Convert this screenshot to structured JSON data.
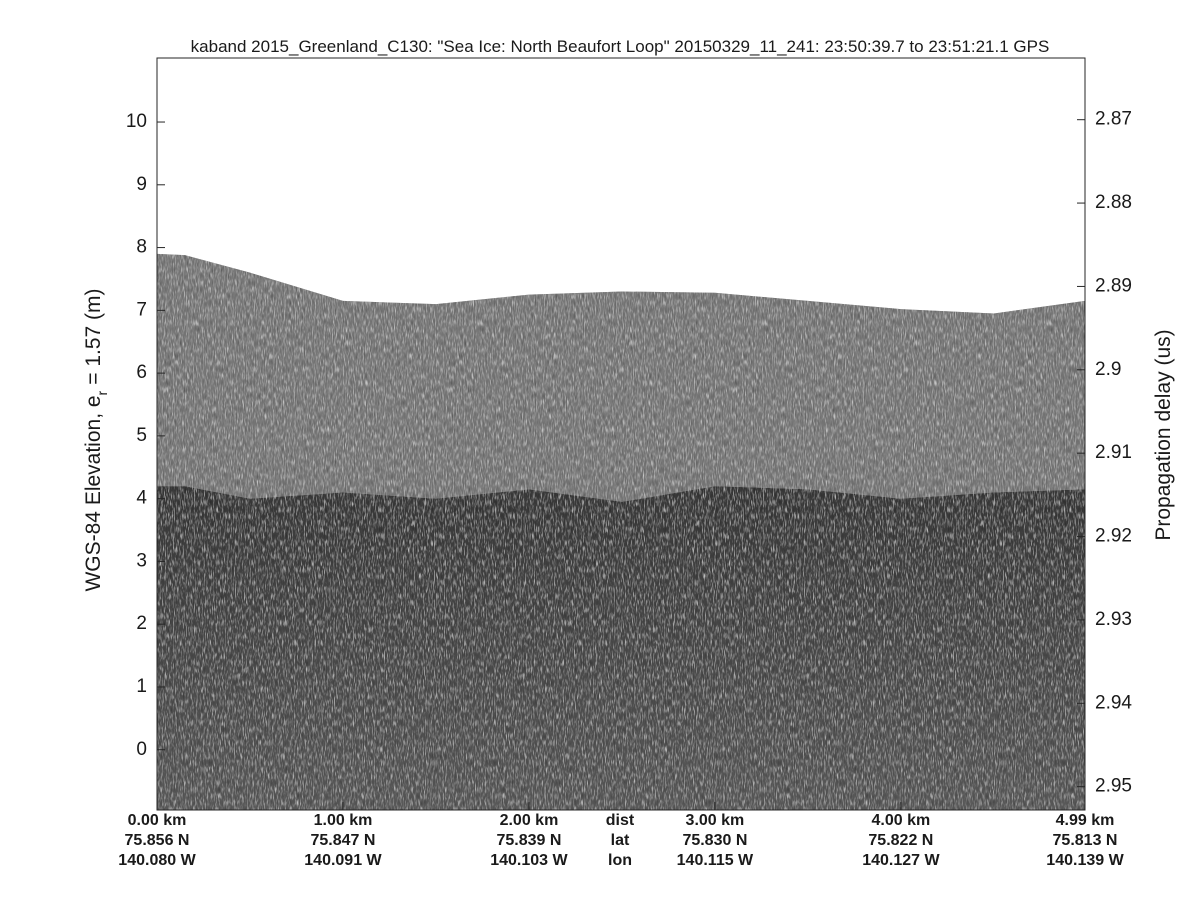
{
  "chart_data": {
    "type": "echogram",
    "title": "kaband 2015_Greenland_C130: \"Sea Ice: North Beaufort Loop\"  20150329_11_241: 23:50:39.7 to 23:51:21.1 GPS",
    "ylabel": {
      "main": "WGS-84 Elevation, e",
      "sub": "r",
      "rest": "= 1.57 (m)"
    },
    "y2label": "Propagation delay (us)",
    "x": [
      0,
      0.15,
      0.5,
      1.0,
      1.5,
      2.0,
      2.5,
      3.0,
      3.5,
      4.0,
      4.5,
      4.99
    ],
    "series": [
      {
        "color": "#7b7b7b",
        "values": [
          7.9,
          7.88,
          7.6,
          7.15,
          7.1,
          7.25,
          7.3,
          7.28,
          7.15,
          7.02,
          6.95,
          7.15
        ]
      },
      {
        "color": "#3a3a3a",
        "values": [
          4.2,
          4.2,
          4.0,
          4.1,
          4.0,
          4.15,
          3.95,
          4.2,
          4.15,
          4.0,
          4.1,
          4.15
        ]
      }
    ],
    "xlim": [
      0,
      4.99
    ],
    "xticks": [
      {
        "value": 0,
        "label": "0.00 km"
      },
      {
        "value": 1,
        "label": "1.00 km"
      },
      {
        "value": 2,
        "label": "2.00 km"
      },
      {
        "value": 3,
        "label": "3.00 km"
      },
      {
        "value": 4,
        "label": "4.00 km"
      },
      {
        "value": 4.99,
        "label": "4.99 km"
      }
    ],
    "xtick_lat": [
      "75.856 N",
      "75.847 N",
      "75.839 N",
      "75.830 N",
      "75.822 N",
      "75.813 N"
    ],
    "xtick_lon": [
      "140.080 W",
      "140.091 W",
      "140.103 W",
      "140.115 W",
      "140.127 W",
      "140.139 W"
    ],
    "xrow_labels": [
      "dist",
      "lat",
      "lon"
    ],
    "ylim": [
      -0.96,
      11.02
    ],
    "yticks": [
      0,
      1,
      2,
      3,
      4,
      5,
      6,
      7,
      8,
      9,
      10
    ],
    "y2lim": [
      2.9528,
      2.8626
    ],
    "y2ticks": [
      2.87,
      2.88,
      2.89,
      2.9,
      2.91,
      2.92,
      2.93,
      2.94,
      2.95
    ]
  }
}
